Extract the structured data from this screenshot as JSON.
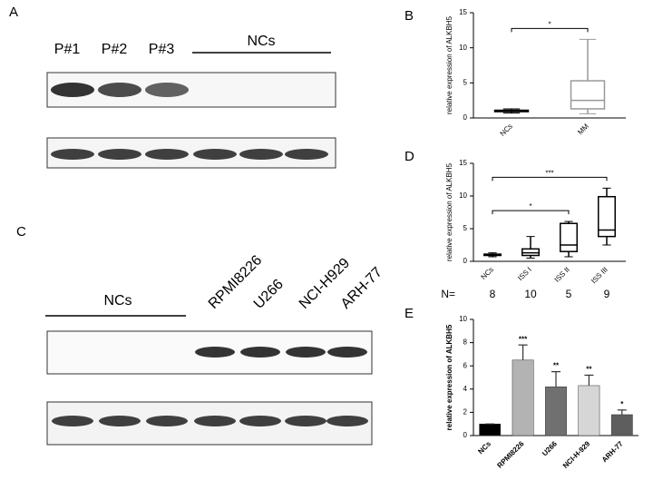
{
  "panels": [
    "A",
    "B",
    "C",
    "D",
    "E"
  ],
  "blot_a": {
    "lanes": [
      "P#1",
      "P#2",
      "P#3"
    ],
    "group": "NCs"
  },
  "blot_c": {
    "lanes": [
      "RPMI8226",
      "U266",
      "NCI-H929",
      "ARH-77"
    ],
    "group": "NCs"
  },
  "chart_data": [
    {
      "type": "box",
      "y_label": "relative expression of ALKBH5",
      "categories": [
        "NCs",
        "MM"
      ],
      "boxes": [
        {
          "min": 0.7,
          "q1": 0.9,
          "median": 1.0,
          "q3": 1.1,
          "max": 1.3,
          "color": "#000000"
        },
        {
          "min": 0.6,
          "q1": 1.3,
          "median": 2.5,
          "q3": 5.3,
          "max": 11.2,
          "color": "#999999"
        }
      ],
      "ylim": [
        0,
        15
      ],
      "yticks": [
        0,
        5,
        10,
        15
      ],
      "annotations": [
        {
          "label": "*",
          "categories": [
            "NCs",
            "MM"
          ]
        }
      ]
    },
    {
      "type": "box",
      "y_label": "relative expression of ALKBH5",
      "categories": [
        "NCs",
        "ISS I",
        "ISS II",
        "ISS III"
      ],
      "boxes": [
        {
          "min": 0.7,
          "q1": 0.9,
          "median": 1.0,
          "q3": 1.1,
          "max": 1.3,
          "color": "#000000"
        },
        {
          "min": 0.5,
          "q1": 0.9,
          "median": 1.3,
          "q3": 1.9,
          "max": 3.8,
          "color": "#000000"
        },
        {
          "min": 0.7,
          "q1": 1.5,
          "median": 2.5,
          "q3": 5.8,
          "max": 6.1,
          "color": "#000000"
        },
        {
          "min": 2.5,
          "q1": 3.8,
          "median": 4.8,
          "q3": 9.9,
          "max": 11.2,
          "color": "#000000"
        }
      ],
      "ylim": [
        0,
        15
      ],
      "yticks": [
        0,
        5,
        10,
        15
      ],
      "annotations": [
        {
          "label": "*",
          "categories": [
            "NCs",
            "ISS II"
          ]
        },
        {
          "label": "***",
          "categories": [
            "NCs",
            "ISS III"
          ]
        }
      ],
      "n_row": {
        "label": "N=",
        "values": [
          8,
          10,
          5,
          9
        ]
      }
    },
    {
      "type": "bar",
      "y_label": "relative expression of ALKBH5",
      "categories": [
        "NCs",
        "RPMI8226",
        "U266",
        "NCI-H-929",
        "ARH-77"
      ],
      "values": [
        1,
        6.5,
        4.2,
        4.3,
        1.8
      ],
      "errors": [
        0,
        1.3,
        1.3,
        0.9,
        0.4
      ],
      "colors": [
        "#000000",
        "#b3b3b3",
        "#707070",
        "#d6d6d6",
        "#5e5e5e"
      ],
      "significance": [
        null,
        "***",
        "**",
        "**",
        "*"
      ],
      "ylim": [
        0,
        10
      ],
      "yticks": [
        0,
        2,
        4,
        6,
        8,
        10
      ]
    }
  ]
}
